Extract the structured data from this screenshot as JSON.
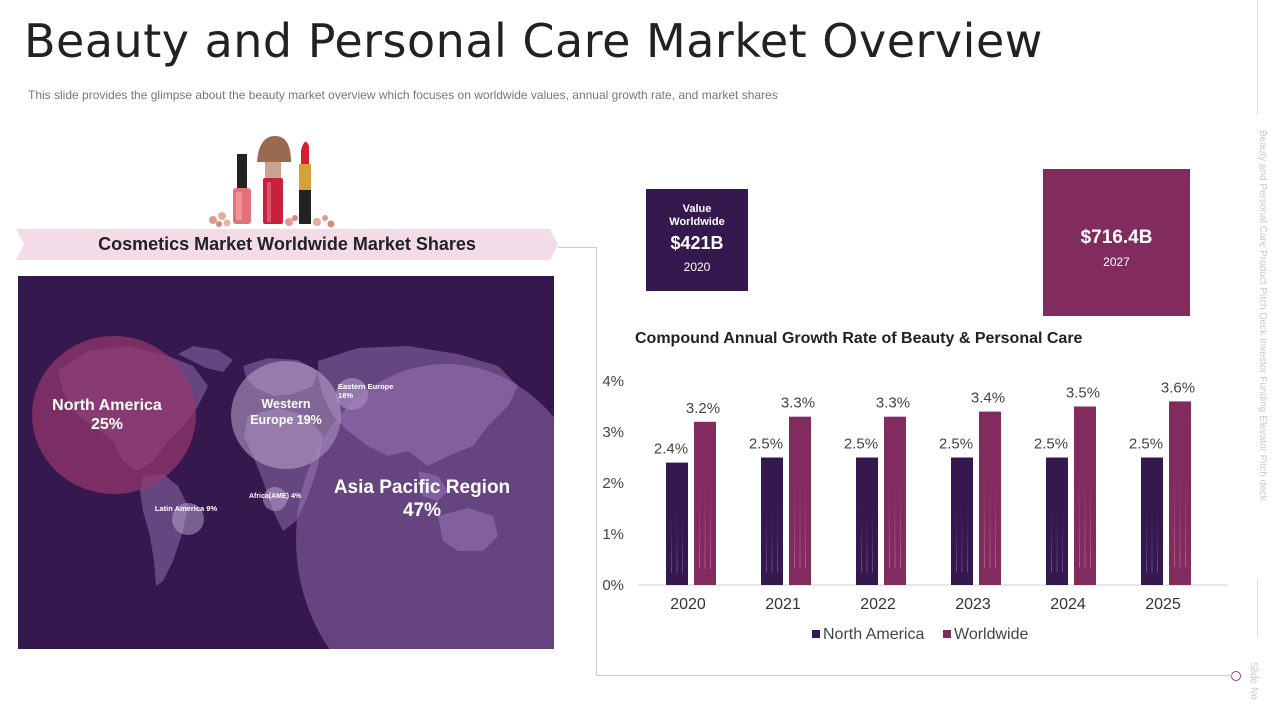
{
  "page": {
    "title": "Beauty and Personal Care Market Overview",
    "subtitle": "This slide provides  the glimpse about the beauty market overview  which focuses on worldwide values, annual growth rate, and market shares",
    "side_text": "Beauty and Personal Care Product Pitch Deck Investor Funding Elevator Pitch deck",
    "slide_no": "Slide No"
  },
  "market_shares": {
    "heading": "Cosmetics Market Worldwide Market Shares",
    "regions": [
      {
        "name": "North America",
        "value": "25%"
      },
      {
        "name": "Western Europe 19%"
      },
      {
        "name": "Eastern  Europe 18%"
      },
      {
        "name": "Latin America  9%"
      },
      {
        "name": "Africa(AME) 4%"
      },
      {
        "name": "Asia Pacific Region",
        "value": "47%"
      }
    ]
  },
  "value_boxes": [
    {
      "label": "Value Worldwide",
      "amount": "$421B",
      "year": "2020"
    },
    {
      "amount": "$716.4B",
      "year": "2027"
    }
  ],
  "colors": {
    "north_america": "#35184d",
    "worldwide": "#822b5f",
    "ribbon": "#f3dbe7"
  },
  "chart_data": {
    "type": "bar",
    "title": "Compound Annual Growth Rate of Beauty & Personal Care",
    "categories": [
      "2020",
      "2021",
      "2022",
      "2023",
      "2024",
      "2025"
    ],
    "series": [
      {
        "name": "North America",
        "values": [
          2.4,
          2.5,
          2.5,
          2.5,
          2.5,
          2.5
        ],
        "labels": [
          "2.4%",
          "2.5%",
          "2.5%",
          "2.5%",
          "2.5%",
          "2.5%"
        ]
      },
      {
        "name": "Worldwide",
        "values": [
          3.2,
          3.3,
          3.3,
          3.4,
          3.5,
          3.6
        ],
        "labels": [
          "3.2%",
          "3.3%",
          "3.3%",
          "3.4%",
          "3.5%",
          "3.6%"
        ]
      }
    ],
    "ylim": [
      0,
      4
    ],
    "yticks": [
      "0%",
      "1%",
      "2%",
      "3%",
      "4%"
    ],
    "legend_position": "bottom",
    "grid": false
  }
}
